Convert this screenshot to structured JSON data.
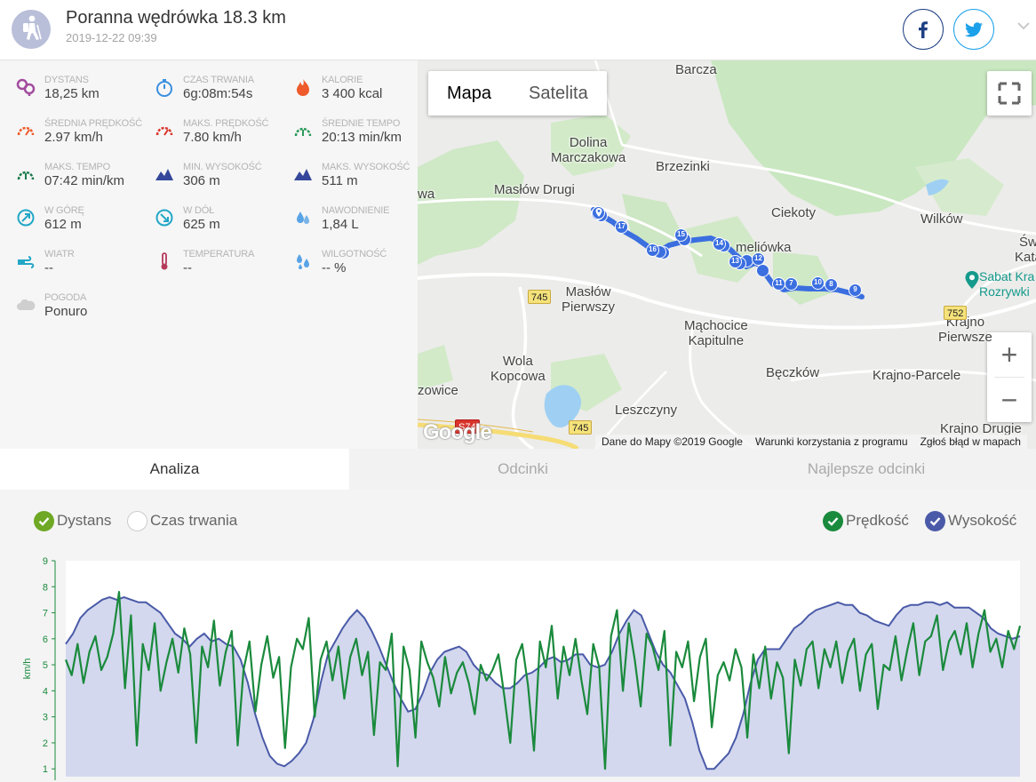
{
  "header": {
    "title": "Poranna wędrówka 18.3 km",
    "date": "2019-12-22 09:39",
    "activity_icon": "hiking-icon",
    "share": [
      {
        "name": "facebook-share-button",
        "icon": "facebook-icon",
        "color": "#1e3f83"
      },
      {
        "name": "twitter-share-button",
        "icon": "twitter-icon",
        "color": "#1aa1ea"
      }
    ]
  },
  "stats": [
    {
      "label": "DYSTANS",
      "value": "18,25 km",
      "icon": "distance-icon",
      "color": "#a24c9e"
    },
    {
      "label": "CZAS TRWANIA",
      "value": "6g:08m:54s",
      "icon": "stopwatch-icon",
      "color": "#3a8fe0"
    },
    {
      "label": "KALORIE",
      "value": "3 400 kcal",
      "icon": "flame-icon",
      "color": "#ee5a2b"
    },
    {
      "label": "ŚREDNIA PRĘDKOŚĆ",
      "value": "2.97 km/h",
      "icon": "speedometer-icon",
      "color": "#ee5a2b"
    },
    {
      "label": "MAKS. PRĘDKOŚĆ",
      "value": "7.80 km/h",
      "icon": "speedometer-icon",
      "color": "#d9342b"
    },
    {
      "label": "ŚREDNIE TEMPO",
      "value": "20:13 min/km",
      "icon": "pace-gauge-icon",
      "color": "#2a9a5a"
    },
    {
      "label": "MAKS. TEMPO",
      "value": "07:42 min/km",
      "icon": "pace-gauge-icon",
      "color": "#1a7a4a"
    },
    {
      "label": "MIN. WYSOKOŚĆ",
      "value": "306 m",
      "icon": "mountain-icon",
      "color": "#34479a"
    },
    {
      "label": "MAKS. WYSOKOŚĆ",
      "value": "511 m",
      "icon": "mountain-icon",
      "color": "#34479a"
    },
    {
      "label": "W GÓRĘ",
      "value": "612 m",
      "icon": "ascent-icon",
      "color": "#22a7c7"
    },
    {
      "label": "W DÓŁ",
      "value": "625 m",
      "icon": "descent-icon",
      "color": "#22a7c7"
    },
    {
      "label": "NAWODNIENIE",
      "value": "1,84 L",
      "icon": "water-drop-icon",
      "color": "#5aa4e6"
    },
    {
      "label": "WIATR",
      "value": "--",
      "icon": "wind-icon",
      "color": "#22a7c7"
    },
    {
      "label": "TEMPERATURA",
      "value": "--",
      "icon": "thermometer-icon",
      "color": "#b63a5a"
    },
    {
      "label": "WILGOTNOŚĆ",
      "value": "-- %",
      "icon": "humidity-icon",
      "color": "#5aa4e6"
    },
    {
      "label": "POGODA",
      "value": "Ponuro",
      "icon": "cloud-icon",
      "color": "#cfcfcf"
    }
  ],
  "map": {
    "type_buttons": [
      "Mapa",
      "Satelita"
    ],
    "active_type": "Mapa",
    "zoom_in": "+",
    "zoom_out": "−",
    "places": [
      "Barcza",
      "Dolina\nMarczakowa",
      "Brzezinki",
      "Masłów Drugi",
      "Ciekoty",
      "Wilków",
      "Św\nKata",
      "meliówka",
      "Masłów\nPierwszy",
      "Mąchocice\nKapitulne",
      "Krajno\nPierwsze",
      "Wola\nKopcowa",
      "Bęczków",
      "Krajno-Parcele",
      "zowice",
      "Leszczyny",
      "Krajno Drugie",
      "wa"
    ],
    "roads": [
      "745",
      "745",
      "752",
      "S74"
    ],
    "poi": "Sabat Kra\nRozrywki",
    "route_markers": [
      "17",
      "16",
      "15",
      "14",
      "13",
      "12",
      "11",
      "7",
      "10",
      "8",
      "9"
    ],
    "google_logo": "Google",
    "attribution": [
      "Dane do Mapy ©2019 Google",
      "Warunki korzystania z programu",
      "Zgłoś błąd w mapach"
    ],
    "accent": "#3b6fe0"
  },
  "tabs": [
    "Analiza",
    "Odcinki",
    "Najlepsze odcinki"
  ],
  "active_tab": "Analiza",
  "chart_options": {
    "x_axis": [
      {
        "label": "Dystans",
        "checked": true
      },
      {
        "label": "Czas trwania",
        "checked": false
      }
    ],
    "series_toggles": [
      {
        "label": "Prędkość",
        "checked": true,
        "color": "#1a8a3c"
      },
      {
        "label": "Wysokość",
        "checked": true,
        "color": "#4a5aa8"
      }
    ]
  },
  "chart_data": {
    "type": "line",
    "ylabel": "km/h",
    "ylim": [
      0.7,
      9
    ],
    "yticks": [
      1,
      2,
      3,
      4,
      5,
      6,
      7,
      8,
      9
    ],
    "grid": false,
    "series": [
      {
        "name": "Prędkość",
        "color": "#1a8a3c",
        "values": [
          5.2,
          4.6,
          5.8,
          4.3,
          5.5,
          6.1,
          4.8,
          5.3,
          6.2,
          7.8,
          4.1,
          6.9,
          1.9,
          5.8,
          4.8,
          6.6,
          4.0,
          5.1,
          6.0,
          4.7,
          6.4,
          5.4,
          2.0,
          5.7,
          4.9,
          6.7,
          4.2,
          5.5,
          6.3,
          1.9,
          4.8,
          5.9,
          3.2,
          5.0,
          6.1,
          4.5,
          5.3,
          1.8,
          4.9,
          6.0,
          5.6,
          6.8,
          3.0,
          5.2,
          5.9,
          4.4,
          5.7,
          3.7,
          5.3,
          6.0,
          4.6,
          5.5,
          2.3,
          5.1,
          4.8,
          6.2,
          1.1,
          5.7,
          4.8,
          2.2,
          5.9,
          5.1,
          4.5,
          3.4,
          5.3,
          3.9,
          4.7,
          5.1,
          4.3,
          3.1,
          5.0,
          4.4,
          4.8,
          5.4,
          3.8,
          2.0,
          5.2,
          5.8,
          4.2,
          1.7,
          5.9,
          4.9,
          6.5,
          3.7,
          5.7,
          4.6,
          6.0,
          4.4,
          3.1,
          5.8,
          4.9,
          1.0,
          6.1,
          7.1,
          4.0,
          6.6,
          5.2,
          3.4,
          6.2,
          5.7,
          4.8,
          6.3,
          1.9,
          5.5,
          4.9,
          5.9,
          3.6,
          5.3,
          6.0,
          2.6,
          4.6,
          5.1,
          4.4,
          5.6,
          4.9,
          2.2,
          5.4,
          4.1,
          5.7,
          3.7,
          5.1,
          4.5,
          1.6,
          5.2,
          4.2,
          5.6,
          5.9,
          4.1,
          5.6,
          4.9,
          5.9,
          4.3,
          5.5,
          6.0,
          4.0,
          5.4,
          5.8,
          3.3,
          5.0,
          4.8,
          6.1,
          4.4,
          5.6,
          6.6,
          4.6,
          5.9,
          6.1,
          6.9,
          4.8,
          5.9,
          6.3,
          5.4,
          6.6,
          4.9,
          6.2,
          7.1,
          5.5,
          6.0,
          4.9,
          6.3,
          5.6,
          6.5
        ]
      },
      {
        "name": "Wysokość",
        "color": "#4a5aa8",
        "values": [
          5.8,
          6.2,
          6.8,
          7.1,
          7.3,
          7.5,
          7.6,
          7.5,
          7.6,
          7.5,
          7.4,
          7.4,
          7.2,
          7.0,
          6.6,
          6.2,
          6.0,
          5.7,
          6.0,
          6.2,
          5.9,
          6.0,
          5.8,
          5.7,
          5.2,
          4.3,
          3.1,
          2.2,
          1.5,
          1.2,
          1.1,
          1.3,
          1.6,
          2.0,
          2.9,
          4.3,
          5.4,
          5.9,
          6.4,
          6.8,
          7.1,
          6.8,
          6.3,
          5.7,
          5.0,
          4.3,
          3.7,
          3.2,
          3.3,
          3.9,
          4.7,
          5.2,
          5.5,
          5.6,
          5.7,
          5.5,
          5.0,
          4.7,
          4.6,
          4.3,
          4.1,
          4.1,
          4.3,
          4.6,
          4.7,
          4.9,
          5.2,
          5.3,
          5.1,
          5.2,
          5.4,
          5.4,
          5.0,
          4.9,
          5.0,
          5.5,
          6.2,
          6.7,
          7.1,
          6.9,
          6.2,
          5.5,
          5.0,
          4.7,
          4.2,
          3.7,
          2.8,
          1.7,
          1.0,
          1.0,
          1.3,
          1.6,
          2.2,
          3.1,
          4.3,
          5.2,
          5.6,
          5.6,
          5.6,
          6.0,
          6.4,
          6.6,
          6.9,
          7.1,
          7.2,
          7.3,
          7.4,
          7.3,
          7.3,
          7.0,
          6.9,
          6.7,
          6.6,
          6.5,
          6.9,
          7.2,
          7.3,
          7.3,
          7.4,
          7.4,
          7.3,
          7.4,
          7.2,
          7.2,
          7.2,
          7.0,
          6.8,
          6.4,
          6.2,
          6.1,
          6.0,
          6.1
        ]
      }
    ]
  }
}
